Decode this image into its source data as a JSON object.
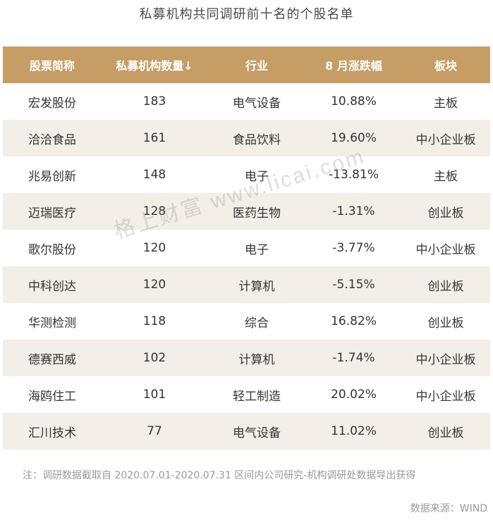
{
  "title": "私募机构共同调研前十名的个股名单",
  "table": {
    "headers": [
      "股票简称",
      "私募机构数量↓",
      "行业",
      "8 月涨跌幅",
      "板块"
    ],
    "rows": [
      [
        "宏发股份",
        "183",
        "电气设备",
        "10.88%",
        "主板"
      ],
      [
        "洽洽食品",
        "161",
        "食品饮料",
        "19.60%",
        "中小企业板"
      ],
      [
        "兆易创新",
        "148",
        "电子",
        "-13.81%",
        "主板"
      ],
      [
        "迈瑞医疗",
        "128",
        "医药生物",
        "-1.31%",
        "创业板"
      ],
      [
        "歌尔股份",
        "120",
        "电子",
        "-3.77%",
        "中小企业板"
      ],
      [
        "中科创达",
        "120",
        "计算机",
        "-5.15%",
        "创业板"
      ],
      [
        "华测检测",
        "118",
        "综合",
        "16.82%",
        "创业板"
      ],
      [
        "德赛西威",
        "102",
        "计算机",
        "-1.74%",
        "中小企业板"
      ],
      [
        "海鸥住工",
        "101",
        "轻工制造",
        "20.02%",
        "中小企业板"
      ],
      [
        "汇川技术",
        "77",
        "电气设备",
        "11.02%",
        "创业板"
      ]
    ]
  },
  "watermark": "格上财富 www.licai.com",
  "note": "注：调研数据截取自 2020.07.01-2020.07.31 区间内公司研究-机构调研处数据导出获得",
  "source": "数据来源：WIND",
  "colors": {
    "header_bg": "#c59d65",
    "header_text": "#ffffff",
    "alt_row_bg": "#f3eee7"
  }
}
